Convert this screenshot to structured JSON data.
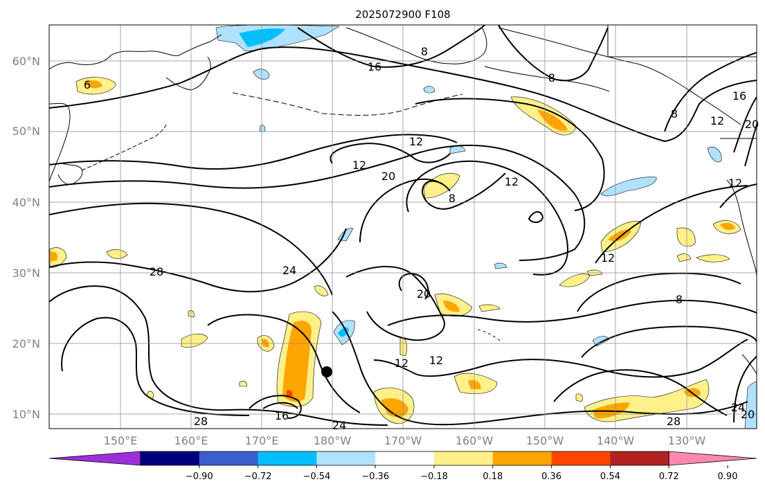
{
  "title": "2025072900 F108",
  "latitude_labels": [
    "60°N",
    "50°N",
    "40°N",
    "30°N",
    "20°N",
    "10°N"
  ],
  "longitude_labels": [
    "150°E",
    "160°E",
    "170°E",
    "180°W",
    "170°W",
    "160°W",
    "150°W",
    "140°W",
    "130°W"
  ],
  "colorbar": {
    "tick_labels": [
      "−0.90",
      "−0.72",
      "−0.54",
      "−0.36",
      "−0.18",
      "0.18",
      "0.36",
      "0.54",
      "0.72",
      "0.90"
    ],
    "colors": [
      "#9b30d9",
      "#00007f",
      "#3a5fcd",
      "#00bfff",
      "#b0e2ff",
      "#ffffff",
      "#fff08a",
      "#ffa500",
      "#ff4500",
      "#b22222",
      "#ff88b0"
    ]
  },
  "contour_labels": [
    "8",
    "16",
    "8",
    "16",
    "12",
    "20",
    "12",
    "12",
    "20",
    "8",
    "12",
    "12",
    "12",
    "28",
    "24",
    "20",
    "8",
    "12",
    "12",
    "16",
    "24",
    "28",
    "24",
    "20",
    "16",
    "12",
    "6"
  ],
  "storm_marker": "tropical-cyclone-position"
}
